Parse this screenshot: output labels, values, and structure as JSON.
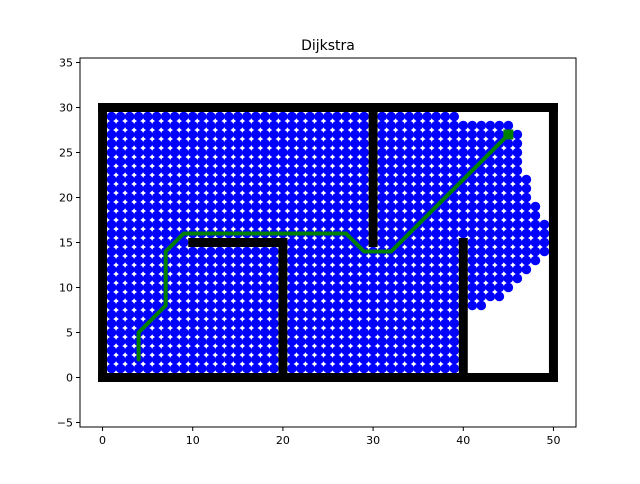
{
  "chart_data": {
    "type": "scatter",
    "title": "Dijkstra",
    "xlabel": "",
    "ylabel": "",
    "xlim": [
      -2.5,
      52.5
    ],
    "ylim": [
      -5.5,
      35.5
    ],
    "xticks": [
      0,
      10,
      20,
      30,
      40,
      50
    ],
    "yticks": [
      -5,
      0,
      5,
      10,
      15,
      20,
      25,
      30,
      35
    ],
    "xtick_labels": [
      "0",
      "10",
      "20",
      "30",
      "40",
      "50"
    ],
    "ytick_labels": [
      "−5",
      "0",
      "5",
      "10",
      "15",
      "20",
      "25",
      "30",
      "35"
    ],
    "grid": false,
    "colors": {
      "visited": "#0000ff",
      "obstacle": "#000000",
      "path": "#008000",
      "goal": "#008000"
    },
    "visited_region": {
      "x_range": [
        1,
        49
      ],
      "y_range": [
        1,
        29
      ],
      "step": 1,
      "right_boundary_by_row": [
        [
          1,
          39
        ],
        [
          2,
          39
        ],
        [
          3,
          39
        ],
        [
          4,
          39
        ],
        [
          5,
          39
        ],
        [
          6,
          39
        ],
        [
          7,
          39
        ],
        [
          8,
          42
        ],
        [
          9,
          44
        ],
        [
          10,
          45
        ],
        [
          11,
          46
        ],
        [
          12,
          47
        ],
        [
          13,
          48
        ],
        [
          14,
          49
        ],
        [
          15,
          49
        ],
        [
          16,
          49
        ],
        [
          17,
          49
        ],
        [
          18,
          48
        ],
        [
          19,
          48
        ],
        [
          20,
          47
        ],
        [
          21,
          47
        ],
        [
          22,
          47
        ],
        [
          23,
          46
        ],
        [
          24,
          46
        ],
        [
          25,
          46
        ],
        [
          26,
          46
        ],
        [
          27,
          46
        ],
        [
          28,
          45
        ],
        [
          29,
          39
        ]
      ],
      "excluded_walls": "interior obstacles"
    },
    "obstacles": [
      {
        "name": "bottom-wall",
        "x": [
          0,
          50
        ],
        "y": [
          0,
          0
        ]
      },
      {
        "name": "top-wall",
        "x": [
          0,
          50
        ],
        "y": [
          30,
          30
        ]
      },
      {
        "name": "left-wall",
        "x": [
          0,
          0
        ],
        "y": [
          0,
          30
        ]
      },
      {
        "name": "right-wall",
        "x": [
          50,
          50
        ],
        "y": [
          0,
          30
        ]
      },
      {
        "name": "ledge-wall",
        "x": [
          10,
          20
        ],
        "y": [
          15,
          15
        ]
      },
      {
        "name": "center-lower-wall",
        "x": [
          20,
          20
        ],
        "y": [
          0,
          15
        ]
      },
      {
        "name": "center-upper-wall",
        "x": [
          30,
          30
        ],
        "y": [
          15,
          30
        ]
      },
      {
        "name": "right-lower-wall",
        "x": [
          40,
          40
        ],
        "y": [
          0,
          15
        ]
      }
    ],
    "path": {
      "x": [
        4,
        4,
        7,
        7,
        9,
        27,
        29,
        32,
        45
      ],
      "y": [
        2,
        5,
        8,
        14,
        16,
        16,
        14,
        14,
        27
      ]
    },
    "goal": {
      "x": 45,
      "y": 27
    }
  }
}
